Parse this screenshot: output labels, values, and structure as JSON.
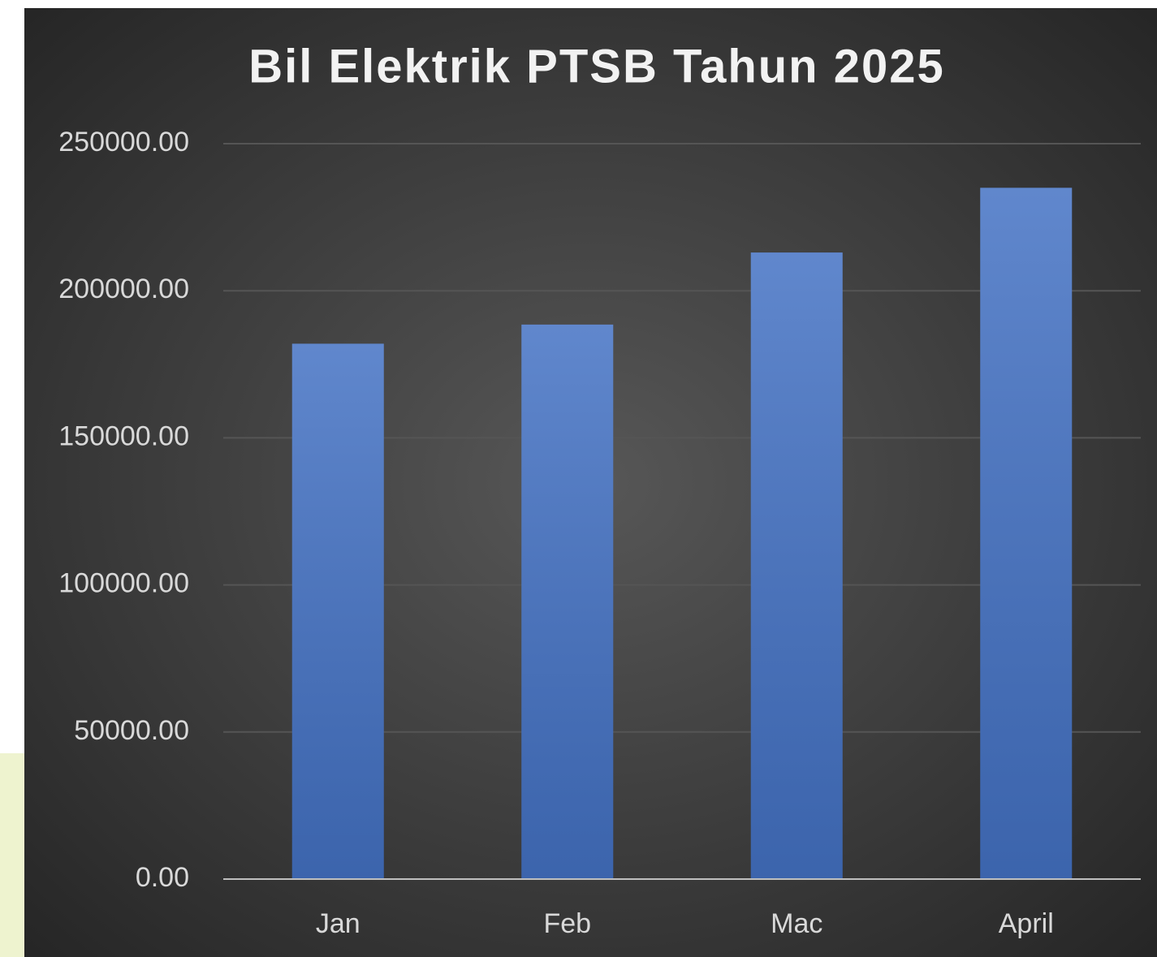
{
  "chart_data": {
    "type": "bar",
    "title": "Bil Elektrik PTSB Tahun 2025",
    "categories": [
      "Jan",
      "Feb",
      "Mac",
      "April"
    ],
    "values": [
      182000,
      188500,
      213000,
      235000
    ],
    "color": "#4472c4",
    "ylim": [
      0,
      250000
    ],
    "yticks": [
      {
        "value": 0,
        "label": "0.00"
      },
      {
        "value": 50000,
        "label": "50000.00"
      },
      {
        "value": 100000,
        "label": "100000.00"
      },
      {
        "value": 150000,
        "label": "150000.00"
      },
      {
        "value": 200000,
        "label": "200000.00"
      },
      {
        "value": 250000,
        "label": "250000.00"
      }
    ],
    "grid": true
  }
}
